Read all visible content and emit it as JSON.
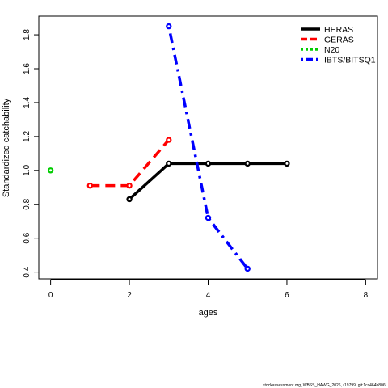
{
  "chart_data": {
    "type": "line",
    "title": "",
    "xlabel": "ages",
    "ylabel": "Standardized catchability",
    "xlim": [
      -0.3,
      8.3
    ],
    "ylim": [
      0.36,
      1.91
    ],
    "xticks": [
      "0",
      "2",
      "4",
      "6",
      "8"
    ],
    "yticks": [
      "0.4",
      "0.6",
      "0.8",
      "1.0",
      "1.2",
      "1.4",
      "1.6",
      "1.8"
    ],
    "legend_position": "top-right",
    "grid": false,
    "series": [
      {
        "name": "HERAS",
        "color": "#000000",
        "dash": "solid",
        "x": [
          2,
          3,
          4,
          5,
          6
        ],
        "y": [
          0.83,
          1.04,
          1.04,
          1.04,
          1.04
        ]
      },
      {
        "name": "GERAS",
        "color": "#ff0000",
        "dash": "dashed",
        "x": [
          1,
          2,
          3
        ],
        "y": [
          0.91,
          0.91,
          1.18
        ]
      },
      {
        "name": "N20",
        "color": "#00cd00",
        "dash": "dotted",
        "x": [
          0
        ],
        "y": [
          1.0
        ]
      },
      {
        "name": "IBTS/BITSQ1",
        "color": "#0000ff",
        "dash": "dotdash",
        "x": [
          3,
          4,
          5
        ],
        "y": [
          1.85,
          0.72,
          0.42
        ]
      }
    ]
  },
  "footer": "stockassessment.org, WBSS_HAWG_2026, r19799, git:1cc464b806f"
}
